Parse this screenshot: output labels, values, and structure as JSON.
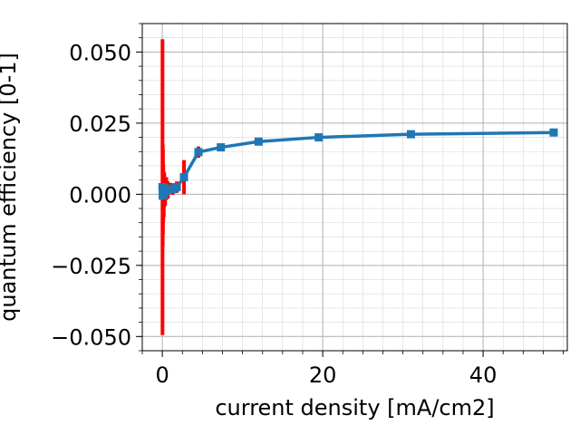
{
  "chart_data": {
    "type": "line",
    "title": "",
    "xlabel": "current density [mA/cm2]",
    "ylabel": "quantum efficiency [0-1]",
    "xlim": [
      -2.5,
      50.5
    ],
    "ylim": [
      -0.055,
      0.06
    ],
    "xticks": [
      0,
      20,
      40
    ],
    "xtick_labels": [
      "0",
      "20",
      "40"
    ],
    "yticks": [
      -0.05,
      -0.025,
      0.0,
      0.025,
      0.05
    ],
    "ytick_labels": [
      "−0.050",
      "−0.025",
      "0.000",
      "0.025",
      "0.050"
    ],
    "grid": true,
    "minor_grid": true,
    "legend": "none",
    "line_color": "#1f77b4",
    "errorbar_color": "#ff0000",
    "marker": "square",
    "series": [
      {
        "x": [
          0.02,
          0.05,
          0.08,
          0.12,
          0.18,
          0.25,
          0.35,
          0.5,
          0.7,
          1.0,
          1.3,
          1.8,
          2.7,
          4.5,
          7.3,
          12.0,
          19.5,
          31.0,
          48.8
        ],
        "y": [
          0.0025,
          -0.0005,
          0.001,
          0.0005,
          0.0,
          0.0015,
          0.001,
          0.002,
          0.0015,
          0.002,
          0.0018,
          0.0025,
          0.006,
          0.0148,
          0.0165,
          0.0185,
          0.02,
          0.0211,
          0.0217
        ],
        "yerr": [
          0.052,
          0.018,
          0.015,
          0.01,
          0.008,
          0.006,
          0.005,
          0.004,
          0.003,
          0.002,
          0.002,
          0.002,
          0.006,
          0.002,
          0.001,
          0.0005,
          0.0005,
          0.0005,
          0.0005
        ]
      }
    ]
  }
}
